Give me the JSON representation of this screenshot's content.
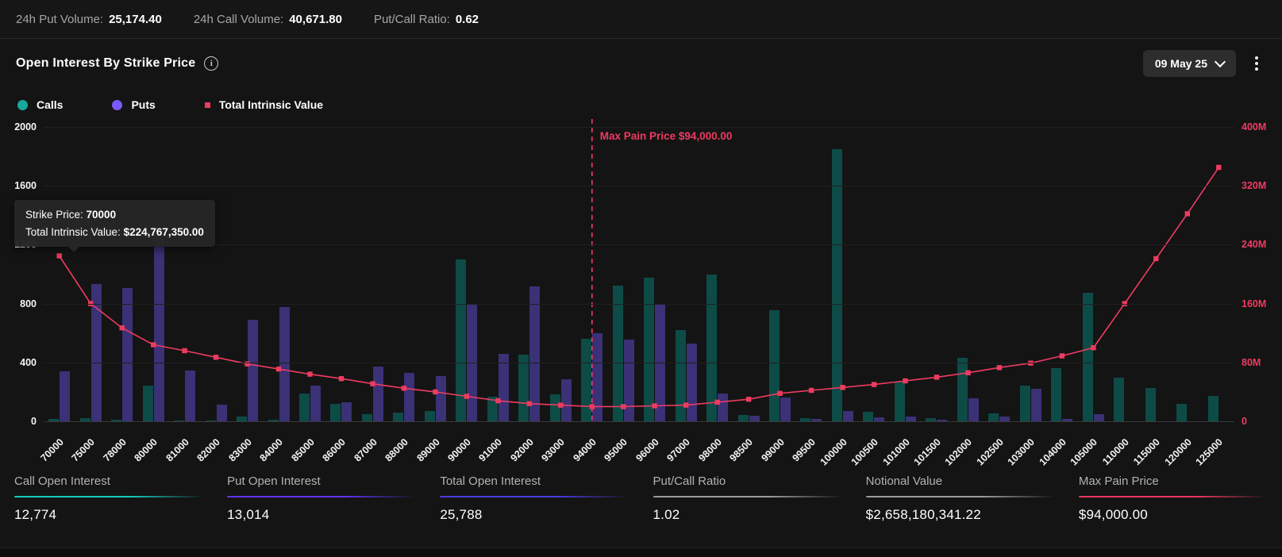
{
  "topbar": {
    "items": [
      {
        "label": "24h Put Volume:",
        "value": "25,174.40"
      },
      {
        "label": "24h Call Volume:",
        "value": "40,671.80"
      },
      {
        "label": "Put/Call Ratio:",
        "value": "0.62"
      }
    ]
  },
  "header": {
    "title": "Open Interest By Strike Price",
    "info_icon": "i",
    "date_selector": "09 May 25",
    "menu_icon": "kebab-menu"
  },
  "legend": [
    {
      "label": "Calls",
      "color": "#16a89b",
      "shape": "circle"
    },
    {
      "label": "Puts",
      "color": "#7a5af8",
      "shape": "circle"
    },
    {
      "label": "Total Intrinsic Value",
      "color": "#ee3b60",
      "shape": "square"
    }
  ],
  "tooltip": {
    "line1_label": "Strike Price: ",
    "line1_value": "70000",
    "line2_label": "Total Intrinsic Value: ",
    "line2_value": "$224,767,350.00"
  },
  "annotations": {
    "max_pain_label": "Max Pain Price $94,000.00",
    "max_pain_strike": "94000"
  },
  "chart_data": {
    "type": "bar",
    "title": "Open Interest By Strike Price",
    "categories": [
      "70000",
      "75000",
      "78000",
      "80000",
      "81000",
      "82000",
      "83000",
      "84000",
      "85000",
      "86000",
      "87000",
      "88000",
      "89000",
      "90000",
      "91000",
      "92000",
      "93000",
      "94000",
      "95000",
      "96000",
      "97000",
      "98000",
      "98500",
      "99000",
      "99500",
      "100000",
      "100500",
      "101000",
      "101500",
      "102000",
      "102500",
      "103000",
      "104000",
      "105000",
      "110000",
      "115000",
      "120000",
      "125000"
    ],
    "series": [
      {
        "name": "Calls",
        "type": "bar",
        "axis": "left",
        "color": "#0d4b47",
        "values": [
          15,
          20,
          10,
          240,
          5,
          5,
          35,
          10,
          190,
          120,
          50,
          60,
          70,
          1100,
          165,
          455,
          185,
          560,
          920,
          975,
          620,
          1000,
          45,
          755,
          20,
          1850,
          65,
          270,
          20,
          430,
          55,
          240,
          360,
          875,
          295,
          225,
          120,
          170
        ]
      },
      {
        "name": "Puts",
        "type": "bar",
        "axis": "left",
        "color": "#3a3176",
        "values": [
          340,
          935,
          905,
          1330,
          345,
          115,
          690,
          775,
          245,
          130,
          370,
          330,
          310,
          800,
          460,
          915,
          285,
          600,
          555,
          790,
          530,
          190,
          40,
          160,
          15,
          70,
          25,
          30,
          10,
          155,
          30,
          220,
          15,
          50,
          0,
          0,
          0,
          0
        ]
      },
      {
        "name": "Total Intrinsic Value",
        "type": "line",
        "axis": "right",
        "color": "#ee3b60",
        "values_millions": [
          224.77,
          160,
          127,
          104,
          96,
          87,
          78,
          71,
          64,
          58,
          51,
          45,
          40,
          34,
          28,
          24,
          22,
          20,
          20,
          21,
          22,
          26,
          30,
          38,
          42,
          46,
          50,
          55,
          60,
          66,
          73,
          79,
          89,
          100,
          160,
          221,
          282,
          345
        ]
      }
    ],
    "left_axis": {
      "ticks": [
        "2000",
        "1600",
        "1200",
        "800",
        "400",
        "0"
      ],
      "max": 2000,
      "min": 0
    },
    "right_axis": {
      "ticks": [
        "400M",
        "320M",
        "240M",
        "160M",
        "80M",
        "0"
      ],
      "max_millions": 400,
      "min": 0
    },
    "max_pain_index": 17,
    "grid": true,
    "legend_position": "top-left"
  },
  "stats": [
    {
      "label": "Call Open Interest",
      "value": "12,774",
      "color": "#17c9ba"
    },
    {
      "label": "Put Open Interest",
      "value": "13,014",
      "color": "#5e35f2"
    },
    {
      "label": "Total Open Interest",
      "value": "25,788",
      "color": "#4b3be0"
    },
    {
      "label": "Put/Call Ratio",
      "value": "1.02",
      "color": "#9a9a9a"
    },
    {
      "label": "Notional Value",
      "value": "$2,658,180,341.22",
      "color": "#9a9a9a"
    },
    {
      "label": "Max Pain Price",
      "value": "$94,000.00",
      "color": "#e8365f"
    }
  ]
}
